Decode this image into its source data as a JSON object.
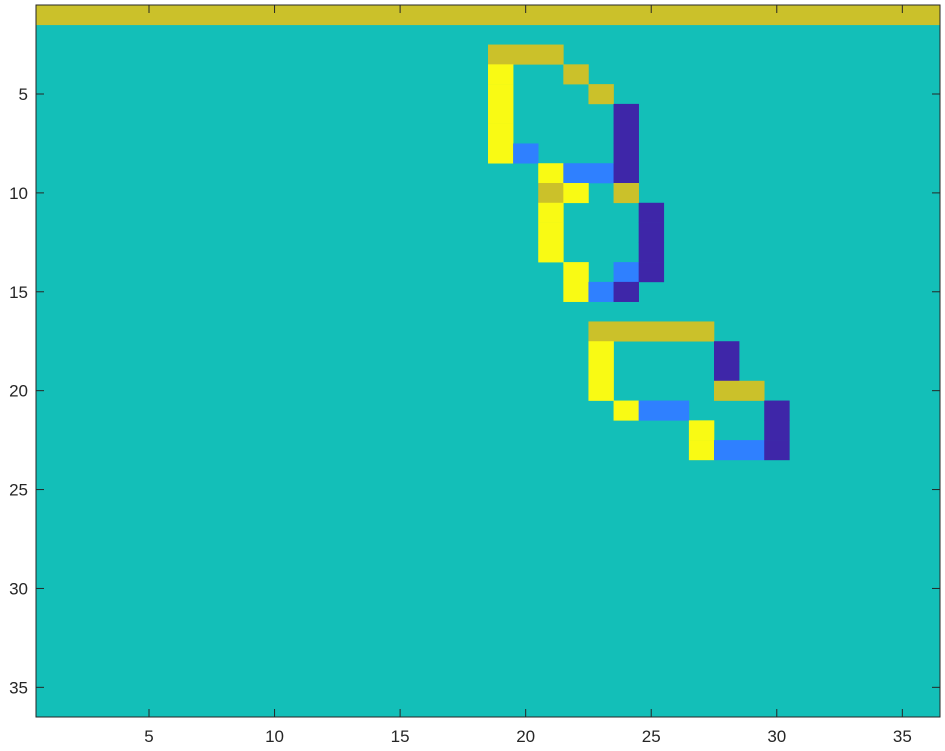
{
  "chart_data": {
    "type": "heatmap",
    "title": "",
    "xlabel": "",
    "ylabel": "",
    "xlim": [
      0.5,
      36.5
    ],
    "ylim": [
      0.5,
      36.5
    ],
    "y_direction": "reverse",
    "grid": false,
    "colorbar": false,
    "background_value": 0,
    "xticks": [
      5,
      10,
      15,
      20,
      25,
      30,
      35
    ],
    "yticks": [
      5,
      10,
      15,
      20,
      25,
      30,
      35
    ],
    "xtick_labels": [
      "5",
      "10",
      "15",
      "20",
      "25",
      "30",
      "35"
    ],
    "ytick_labels": [
      "5",
      "10",
      "15",
      "20",
      "25",
      "30",
      "35"
    ],
    "value_colors": {
      "-2": "#3e26a8",
      "-1": "#2f80ff",
      "0": "#13bfb8",
      "1": "#cbc12a",
      "2": "#f9fa14"
    },
    "cells": [
      {
        "r": 1,
        "c": 1,
        "len": 36,
        "v": 1
      },
      {
        "r": 3,
        "c": 19,
        "len": 3,
        "v": 1
      },
      {
        "r": 4,
        "c": 19,
        "len": 1,
        "v": 2
      },
      {
        "r": 4,
        "c": 22,
        "len": 1,
        "v": 1
      },
      {
        "r": 5,
        "c": 19,
        "len": 1,
        "v": 2
      },
      {
        "r": 5,
        "c": 23,
        "len": 1,
        "v": 1
      },
      {
        "r": 6,
        "c": 19,
        "len": 1,
        "v": 2
      },
      {
        "r": 6,
        "c": 24,
        "len": 1,
        "v": -2
      },
      {
        "r": 7,
        "c": 19,
        "len": 1,
        "v": 2
      },
      {
        "r": 7,
        "c": 24,
        "len": 1,
        "v": -2
      },
      {
        "r": 8,
        "c": 19,
        "len": 1,
        "v": 2
      },
      {
        "r": 8,
        "c": 20,
        "len": 1,
        "v": -1
      },
      {
        "r": 8,
        "c": 24,
        "len": 1,
        "v": -2
      },
      {
        "r": 9,
        "c": 21,
        "len": 1,
        "v": 2
      },
      {
        "r": 9,
        "c": 22,
        "len": 2,
        "v": -1
      },
      {
        "r": 9,
        "c": 24,
        "len": 1,
        "v": -2
      },
      {
        "r": 10,
        "c": 21,
        "len": 1,
        "v": 1
      },
      {
        "r": 10,
        "c": 22,
        "len": 1,
        "v": 2
      },
      {
        "r": 10,
        "c": 24,
        "len": 1,
        "v": 1
      },
      {
        "r": 11,
        "c": 21,
        "len": 1,
        "v": 2
      },
      {
        "r": 11,
        "c": 25,
        "len": 1,
        "v": -2
      },
      {
        "r": 12,
        "c": 21,
        "len": 1,
        "v": 2
      },
      {
        "r": 12,
        "c": 25,
        "len": 1,
        "v": -2
      },
      {
        "r": 13,
        "c": 21,
        "len": 1,
        "v": 2
      },
      {
        "r": 13,
        "c": 25,
        "len": 1,
        "v": -2
      },
      {
        "r": 14,
        "c": 22,
        "len": 1,
        "v": 2
      },
      {
        "r": 14,
        "c": 24,
        "len": 1,
        "v": -1
      },
      {
        "r": 14,
        "c": 25,
        "len": 1,
        "v": -2
      },
      {
        "r": 15,
        "c": 22,
        "len": 1,
        "v": 2
      },
      {
        "r": 15,
        "c": 23,
        "len": 1,
        "v": -1
      },
      {
        "r": 15,
        "c": 24,
        "len": 1,
        "v": -2
      },
      {
        "r": 17,
        "c": 23,
        "len": 5,
        "v": 1
      },
      {
        "r": 18,
        "c": 23,
        "len": 1,
        "v": 2
      },
      {
        "r": 18,
        "c": 28,
        "len": 1,
        "v": -2
      },
      {
        "r": 19,
        "c": 23,
        "len": 1,
        "v": 2
      },
      {
        "r": 19,
        "c": 28,
        "len": 1,
        "v": -2
      },
      {
        "r": 20,
        "c": 23,
        "len": 1,
        "v": 2
      },
      {
        "r": 20,
        "c": 28,
        "len": 2,
        "v": 1
      },
      {
        "r": 21,
        "c": 24,
        "len": 1,
        "v": 2
      },
      {
        "r": 21,
        "c": 25,
        "len": 2,
        "v": -1
      },
      {
        "r": 21,
        "c": 30,
        "len": 1,
        "v": -2
      },
      {
        "r": 22,
        "c": 27,
        "len": 1,
        "v": 2
      },
      {
        "r": 22,
        "c": 30,
        "len": 1,
        "v": -2
      },
      {
        "r": 23,
        "c": 27,
        "len": 1,
        "v": 2
      },
      {
        "r": 23,
        "c": 28,
        "len": 2,
        "v": -1
      },
      {
        "r": 23,
        "c": 30,
        "len": 1,
        "v": -2
      }
    ]
  }
}
